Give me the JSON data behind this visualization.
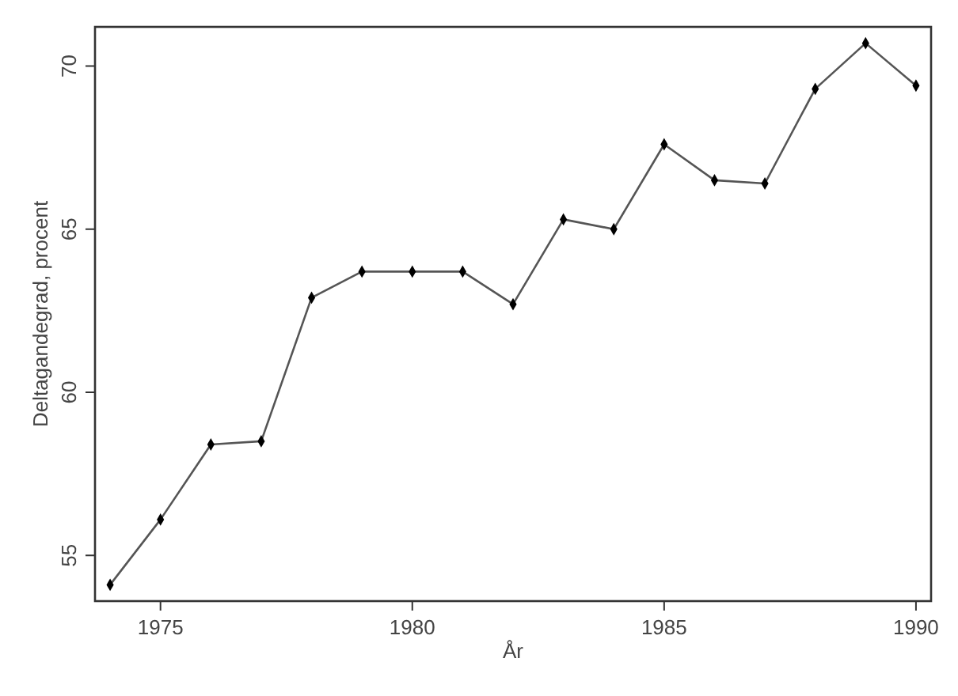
{
  "chart_data": {
    "type": "line",
    "xlabel": "År",
    "ylabel": "Deltagandegrad, procent",
    "x": [
      1974,
      1975,
      1976,
      1977,
      1978,
      1979,
      1980,
      1981,
      1982,
      1983,
      1984,
      1985,
      1986,
      1987,
      1988,
      1989,
      1990
    ],
    "series": [
      {
        "color": "#000000",
        "values": [
          54.1,
          56.1,
          58.4,
          58.5,
          62.9,
          63.7,
          63.7,
          63.7,
          62.7,
          65.3,
          65.0,
          67.6,
          66.5,
          66.4,
          69.3,
          70.7,
          69.4
        ]
      }
    ],
    "xlim": [
      1973.7,
      1990.3
    ],
    "xticks": [
      1975,
      1980,
      1985,
      1990
    ],
    "ylim": [
      53.6,
      71.2
    ],
    "yticks": [
      55,
      60,
      65,
      70
    ],
    "marker": "diamond",
    "line_style": "solid"
  }
}
